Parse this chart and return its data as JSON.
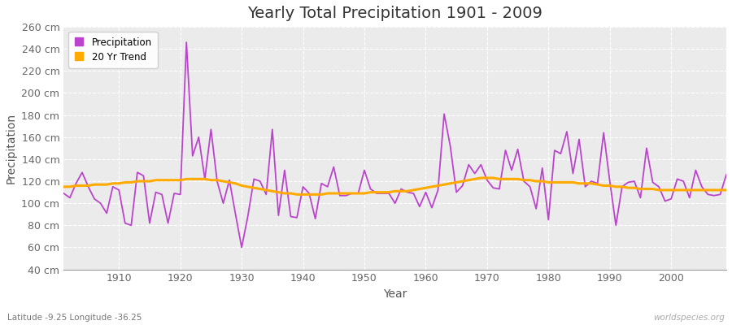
{
  "title": "Yearly Total Precipitation 1901 - 2009",
  "xlabel": "Year",
  "ylabel": "Precipitation",
  "subtitle": "Latitude -9.25 Longitude -36.25",
  "watermark": "worldspecies.org",
  "ylim": [
    40,
    260
  ],
  "yticks": [
    40,
    60,
    80,
    100,
    120,
    140,
    160,
    180,
    200,
    220,
    240,
    260
  ],
  "ytick_labels": [
    "40 cm",
    "60 cm",
    "80 cm",
    "100 cm",
    "120 cm",
    "140 cm",
    "160 cm",
    "180 cm",
    "200 cm",
    "220 cm",
    "240 cm",
    "260 cm"
  ],
  "xlim": [
    1901,
    2009
  ],
  "xticks": [
    1910,
    1920,
    1930,
    1940,
    1950,
    1960,
    1970,
    1980,
    1990,
    2000
  ],
  "precip_color": "#bb44cc",
  "trend_color": "#ffaa00",
  "bg_color": "#ffffff",
  "plot_bg_color": "#ebebeb",
  "grid_color": "#ffffff",
  "grid_linestyle": "--",
  "legend_label_precip": "Precipitation",
  "legend_label_trend": "20 Yr Trend",
  "years": [
    1901,
    1902,
    1903,
    1904,
    1905,
    1906,
    1907,
    1908,
    1909,
    1910,
    1911,
    1912,
    1913,
    1914,
    1915,
    1916,
    1917,
    1918,
    1919,
    1920,
    1921,
    1922,
    1923,
    1924,
    1925,
    1926,
    1927,
    1928,
    1929,
    1930,
    1931,
    1932,
    1933,
    1934,
    1935,
    1936,
    1937,
    1938,
    1939,
    1940,
    1941,
    1942,
    1943,
    1944,
    1945,
    1946,
    1947,
    1948,
    1949,
    1950,
    1951,
    1952,
    1953,
    1954,
    1955,
    1956,
    1957,
    1958,
    1959,
    1960,
    1961,
    1962,
    1963,
    1964,
    1965,
    1966,
    1967,
    1968,
    1969,
    1970,
    1971,
    1972,
    1973,
    1974,
    1975,
    1976,
    1977,
    1978,
    1979,
    1980,
    1981,
    1982,
    1983,
    1984,
    1985,
    1986,
    1987,
    1988,
    1989,
    1990,
    1991,
    1992,
    1993,
    1994,
    1995,
    1996,
    1997,
    1998,
    1999,
    2000,
    2001,
    2002,
    2003,
    2004,
    2005,
    2006,
    2007,
    2008,
    2009
  ],
  "precip": [
    109,
    105,
    118,
    128,
    115,
    104,
    100,
    91,
    115,
    112,
    82,
    80,
    128,
    125,
    82,
    110,
    108,
    82,
    109,
    108,
    246,
    143,
    160,
    122,
    167,
    120,
    100,
    121,
    90,
    60,
    88,
    122,
    120,
    108,
    167,
    89,
    130,
    88,
    87,
    115,
    109,
    86,
    118,
    115,
    133,
    107,
    107,
    109,
    109,
    130,
    113,
    109,
    109,
    109,
    100,
    113,
    110,
    109,
    97,
    110,
    96,
    112,
    181,
    152,
    110,
    116,
    135,
    127,
    135,
    121,
    114,
    113,
    148,
    130,
    149,
    120,
    115,
    95,
    132,
    85,
    148,
    145,
    165,
    127,
    158,
    115,
    120,
    118,
    164,
    120,
    80,
    115,
    119,
    120,
    105,
    150,
    119,
    115,
    102,
    104,
    122,
    120,
    105,
    130,
    115,
    108,
    107,
    108,
    126
  ],
  "trend": [
    115,
    115,
    116,
    116,
    116,
    117,
    117,
    117,
    118,
    118,
    119,
    119,
    120,
    120,
    120,
    121,
    121,
    121,
    121,
    121,
    122,
    122,
    122,
    122,
    121,
    121,
    120,
    119,
    118,
    116,
    115,
    114,
    113,
    112,
    111,
    110,
    109,
    109,
    108,
    108,
    108,
    108,
    108,
    109,
    109,
    109,
    109,
    109,
    109,
    109,
    110,
    110,
    110,
    110,
    111,
    111,
    111,
    112,
    113,
    114,
    115,
    116,
    117,
    118,
    119,
    120,
    121,
    122,
    123,
    123,
    123,
    122,
    122,
    122,
    122,
    121,
    121,
    120,
    120,
    119,
    119,
    119,
    119,
    119,
    118,
    118,
    118,
    117,
    116,
    116,
    115,
    115,
    114,
    114,
    113,
    113,
    113,
    112,
    112,
    112,
    112,
    112,
    112,
    112,
    112,
    112,
    112,
    112,
    112
  ]
}
